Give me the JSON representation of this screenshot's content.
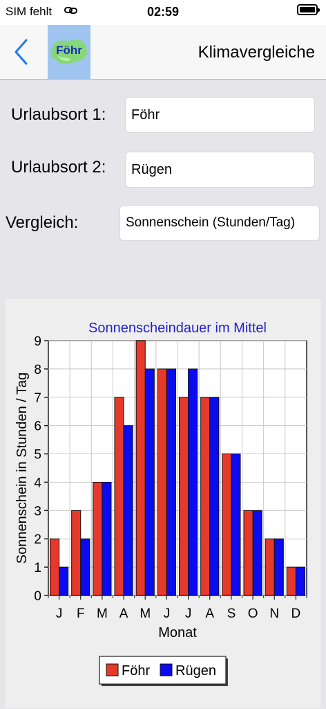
{
  "status_bar": {
    "carrier": "SIM fehlt",
    "time": "02:59"
  },
  "nav": {
    "logo_text": "Föhr",
    "title": "Klimavergleiche"
  },
  "form": {
    "place1_label": "Urlaubsort 1:",
    "place1_value": "Föhr",
    "place2_label": "Urlaubsort 2:",
    "place2_value": "Rügen",
    "compare_label": "Vergleich:",
    "compare_value": "Sonnenschein (Stunden/Tag)"
  },
  "colors": {
    "series1": "#e53a2b",
    "series2": "#0b0bf0",
    "title": "#2222cc"
  },
  "chart_data": {
    "type": "bar",
    "title": "Sonnenscheindauer im Mittel",
    "xlabel": "Monat",
    "ylabel": "Sonnenschein in Stunden / Tag",
    "categories": [
      "J",
      "F",
      "M",
      "A",
      "M",
      "J",
      "J",
      "A",
      "S",
      "O",
      "N",
      "D"
    ],
    "ylim": [
      0,
      9
    ],
    "yticks": [
      0,
      1,
      2,
      3,
      4,
      5,
      6,
      7,
      8,
      9
    ],
    "grid": true,
    "legend_position": "bottom",
    "series": [
      {
        "name": "Föhr",
        "values": [
          2,
          3,
          4,
          7,
          9,
          8,
          7,
          7,
          5,
          3,
          2,
          1
        ]
      },
      {
        "name": "Rügen",
        "values": [
          1,
          2,
          4,
          6,
          8,
          8,
          8,
          7,
          5,
          3,
          2,
          1
        ]
      }
    ]
  }
}
